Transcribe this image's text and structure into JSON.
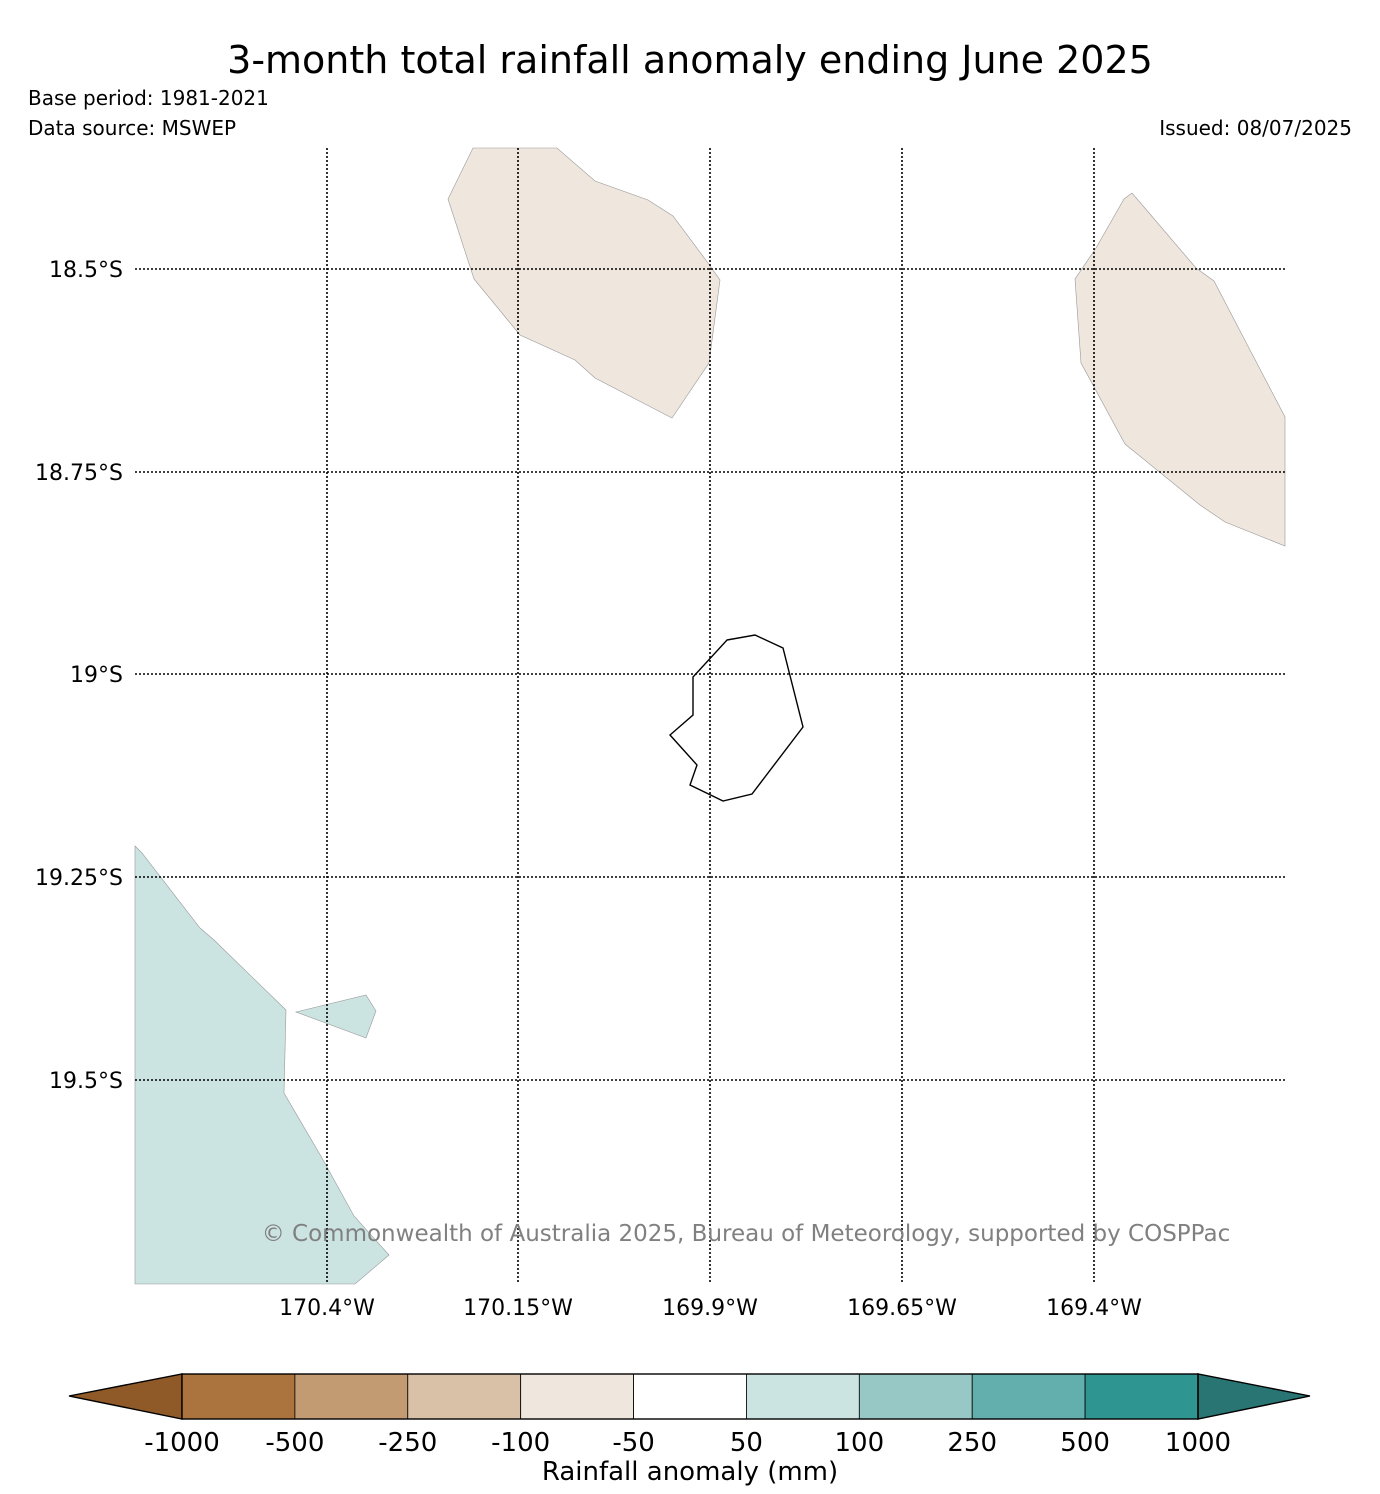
{
  "title": "3-month total rainfall anomaly ending June 2025",
  "base_period": "Base period: 1981-2021",
  "data_source": "Data source: MSWEP",
  "issued": "Issued: 08/07/2025",
  "copyright": "© Commonwealth of Australia 2025, Bureau of Meteorology, supported by COSPPac",
  "map": {
    "lat_labels": [
      "18.5°S",
      "18.75°S",
      "19°S",
      "19.25°S",
      "19.5°S"
    ],
    "lon_labels": [
      "170.4°W",
      "170.15°W",
      "169.9°W",
      "169.65°W",
      "169.4°W"
    ]
  },
  "colorbar": {
    "label": "Rainfall anomaly (mm)",
    "ticks": [
      "-1000",
      "-500",
      "-250",
      "-100",
      "-50",
      "50",
      "100",
      "250",
      "500",
      "1000"
    ],
    "colors": [
      "#8f5a28",
      "#ab733d",
      "#c39b72",
      "#d9c1a8",
      "#efe6dd",
      "#ffffff",
      "#cbe3e1",
      "#98c8c6",
      "#63afad",
      "#2e9591",
      "#287573"
    ]
  }
}
